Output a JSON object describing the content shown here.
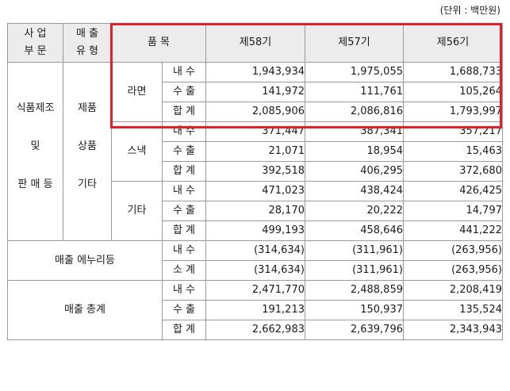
{
  "unit_note": "(단위 : 백만원)",
  "header": {
    "segment": [
      "사 업",
      "부 문"
    ],
    "sales_type": [
      "매 출",
      "유 형"
    ],
    "item": "품 목",
    "periods": [
      "제58기",
      "제57기",
      "제56기"
    ]
  },
  "segment_label": [
    "식품제조",
    "및",
    "판 매 등"
  ],
  "type_label": [
    "제품",
    "상품",
    "기타"
  ],
  "groups": [
    {
      "name": "라면",
      "rows": [
        {
          "label": "내 수",
          "values": [
            "1,943,934",
            "1,975,055",
            "1,688,733"
          ]
        },
        {
          "label": "수 출",
          "values": [
            "141,972",
            "111,761",
            "105,264"
          ]
        },
        {
          "label": "합 계",
          "values": [
            "2,085,906",
            "2,086,816",
            "1,793,997"
          ]
        }
      ]
    },
    {
      "name": "스낵",
      "rows": [
        {
          "label": "내 수",
          "values": [
            "371,447",
            "387,341",
            "357,217"
          ]
        },
        {
          "label": "수 출",
          "values": [
            "21,071",
            "18,954",
            "15,463"
          ]
        },
        {
          "label": "합 계",
          "values": [
            "392,518",
            "406,295",
            "372,680"
          ]
        }
      ]
    },
    {
      "name": "기타",
      "rows": [
        {
          "label": "내 수",
          "values": [
            "471,023",
            "438,424",
            "426,425"
          ]
        },
        {
          "label": "수 출",
          "values": [
            "28,170",
            "20,222",
            "14,797"
          ]
        },
        {
          "label": "합 계",
          "values": [
            "499,193",
            "458,646",
            "441,222"
          ]
        }
      ]
    }
  ],
  "deduction": {
    "name": "매출 에누리등",
    "rows": [
      {
        "label": "내 수",
        "values": [
          "(314,634)",
          "(311,961)",
          "(263,956)"
        ]
      },
      {
        "label": "소 계",
        "values": [
          "(314,634)",
          "(311,961)",
          "(263,956)"
        ]
      }
    ]
  },
  "total": {
    "name": "매출 총계",
    "rows": [
      {
        "label": "내 수",
        "values": [
          "2,471,770",
          "2,488,859",
          "2,208,419"
        ]
      },
      {
        "label": "수 출",
        "values": [
          "191,213",
          "150,937",
          "135,524"
        ]
      },
      {
        "label": "합 계",
        "values": [
          "2,662,983",
          "2,639,796",
          "2,343,943"
        ]
      }
    ]
  },
  "highlight_color": "#e0202a"
}
